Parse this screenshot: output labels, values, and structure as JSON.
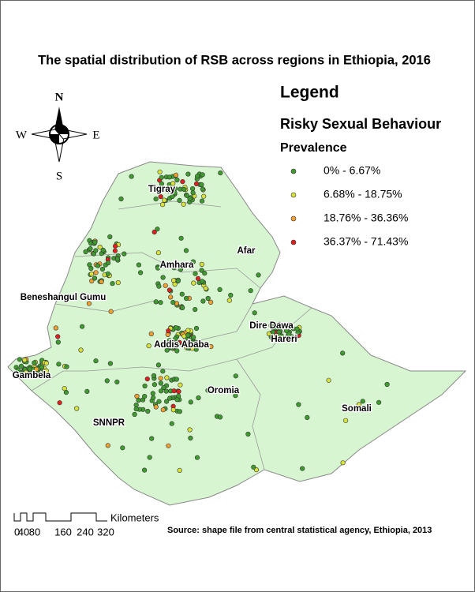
{
  "title": "The spatial distribution of RSB across regions in Ethiopia, 2016",
  "compass": {
    "north": "N",
    "south": "S",
    "east": "E",
    "west": "W"
  },
  "legend": {
    "title": "Legend",
    "subtitle": "Risky Sexual Behaviour",
    "heading": "Prevalence",
    "items": [
      {
        "label": "0% - 6.67%",
        "color": "#3f9a2f"
      },
      {
        "label": "6.68% - 18.75%",
        "color": "#d8e23a"
      },
      {
        "label": "18.76% - 36.36%",
        "color": "#f0a030"
      },
      {
        "label": "36.37% - 71.43%",
        "color": "#e02020"
      }
    ]
  },
  "regions": [
    "Tigray",
    "Afar",
    "Amhara",
    "Beneshangul Gumu",
    "Dire Dawa",
    "Hareri",
    "Addis Ababa",
    "Gambela",
    "Oromia",
    "Somali",
    "SNNPR"
  ],
  "scale_bar": {
    "labels": [
      "0",
      "40",
      "80",
      "160",
      "240",
      "320"
    ],
    "unit": "Kilometers"
  },
  "source": "Source: shape file from central statistical agency, Ethiopia, 2013"
}
